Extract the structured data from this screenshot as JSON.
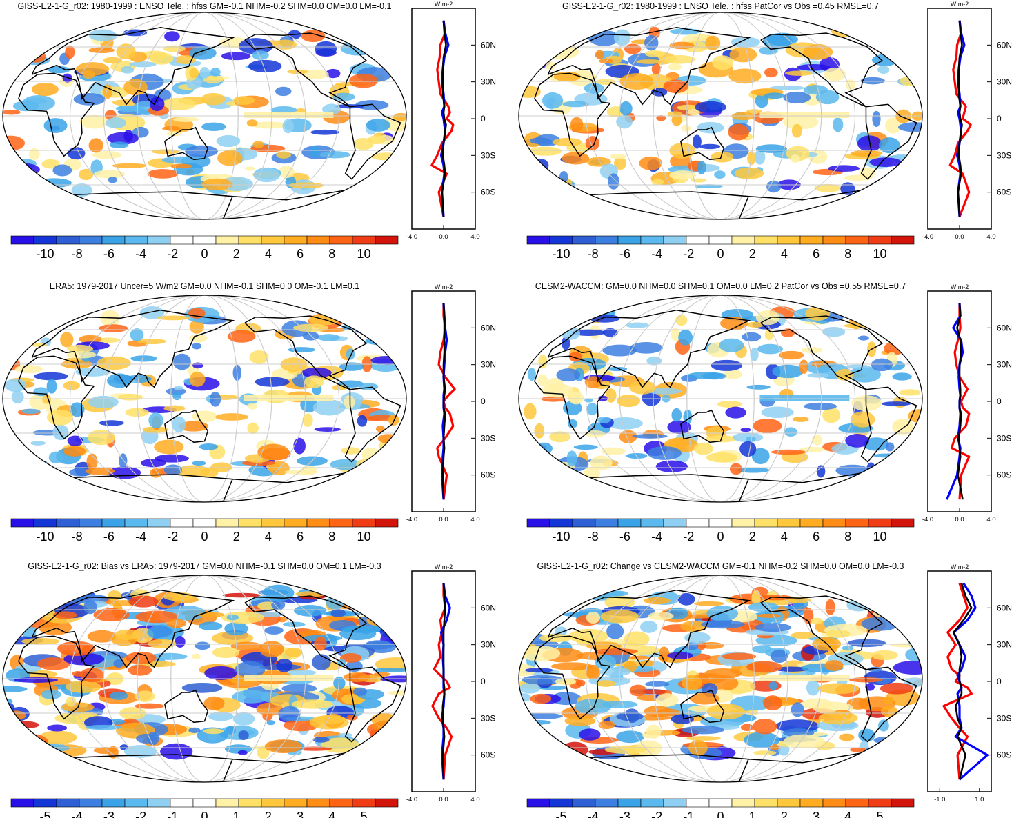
{
  "figure": {
    "panels": [
      {
        "title": "GISS-E2-1-G_r02: 1980-1999 : ENSO Tele. : hfss GM=-0.1 NHM=-0.2 SHM=0.0 OM=0.0 LM=-0.1",
        "colorbar_ticks": [
          "-10",
          "-8",
          "-6",
          "-4",
          "-2",
          "0",
          "2",
          "4",
          "6",
          "8",
          "10"
        ],
        "zonal_ticks": [
          "-4.0",
          "0.0",
          "4.0"
        ],
        "zonal_unit": "W m-2",
        "lat_ticks": [
          "60N",
          "30N",
          "0",
          "30S",
          "60S"
        ]
      },
      {
        "title": "GISS-E2-1-G_r02: 1980-1999 : ENSO Tele. : hfss PatCor vs Obs =0.45 RMSE=0.7",
        "colorbar_ticks": [
          "-10",
          "-8",
          "-6",
          "-4",
          "-2",
          "0",
          "2",
          "4",
          "6",
          "8",
          "10"
        ],
        "zonal_ticks": [
          "-4.0",
          "0.0",
          "4.0"
        ],
        "zonal_unit": "W m-2",
        "lat_ticks": [
          "60N",
          "30N",
          "0",
          "30S",
          "60S"
        ]
      },
      {
        "title": "ERA5: 1979-2017 Uncer=5 W/m2 GM=0.0 NHM=-0.1 SHM=0.0 OM=-0.1 LM=0.1",
        "colorbar_ticks": [
          "-10",
          "-8",
          "-6",
          "-4",
          "-2",
          "0",
          "2",
          "4",
          "6",
          "8",
          "10"
        ],
        "zonal_ticks": [
          "-4.0",
          "0.0",
          "4.0"
        ],
        "zonal_unit": "W m-2",
        "lat_ticks": [
          "60N",
          "30N",
          "0",
          "30S",
          "60S"
        ]
      },
      {
        "title": "CESM2-WACCM: GM=0.0 NHM=0.0 SHM=0.1 OM=0.0 LM=0.2 PatCor vs Obs =0.55 RMSE=0.7",
        "colorbar_ticks": [
          "-10",
          "-8",
          "-6",
          "-4",
          "-2",
          "0",
          "2",
          "4",
          "6",
          "8",
          "10"
        ],
        "zonal_ticks": [
          "-4.0",
          "0.0",
          "4.0"
        ],
        "zonal_unit": "W m-2",
        "lat_ticks": [
          "60N",
          "30N",
          "0",
          "30S",
          "60S"
        ]
      },
      {
        "title": "GISS-E2-1-G_r02: Bias vs ERA5: 1979-2017 GM=0.0 NHM=-0.1 SHM=0.0 OM=0.1 LM=-0.3",
        "colorbar_ticks": [
          "-5",
          "-4",
          "-3",
          "-2",
          "-1",
          "0",
          "1",
          "2",
          "3",
          "4",
          "5"
        ],
        "zonal_ticks": [
          "-4.0",
          "0.0",
          "4.0"
        ],
        "zonal_unit": "W m-2",
        "lat_ticks": [
          "60N",
          "30N",
          "0",
          "30S",
          "60S"
        ]
      },
      {
        "title": "GISS-E2-1-G_r02: Change vs CESM2-WACCM GM=-0.1 NHM=-0.2 SHM=0.0 OM=0.0 LM=-0.3",
        "colorbar_ticks": [
          "-5",
          "-4",
          "-3",
          "-2",
          "-1",
          "0",
          "1",
          "2",
          "3",
          "4",
          "5"
        ],
        "zonal_ticks": [
          "-1.0",
          "1.0"
        ],
        "zonal_unit": "W m-2",
        "lat_ticks": [
          "60N",
          "30N",
          "0",
          "30S",
          "60S"
        ]
      }
    ],
    "colors": {
      "palette": [
        "#2a10e8",
        "#1436d6",
        "#2f5fd4",
        "#3d7fe0",
        "#3aa3e8",
        "#5ab9ee",
        "#8fd0f2",
        "#ffffff",
        "#ffffff",
        "#fff1a6",
        "#ffe066",
        "#ffc83c",
        "#ffac20",
        "#ff8c14",
        "#ff6414",
        "#f03c14",
        "#d2140a"
      ],
      "red_line": "#ff0000",
      "blue_line": "#0000ff",
      "black_line": "#000000",
      "grid": "#cccccc",
      "coast": "#000000"
    }
  },
  "chart_data": [
    {
      "type": "heatmap",
      "title": "GISS-E2-1-G_r02: 1980-1999 : ENSO Tele. : hfss GM=-0.1 NHM=-0.2 SHM=0.0 OM=0.0 LM=-0.1",
      "colorbar_range": [
        -10,
        10
      ],
      "zonal_mean": {
        "xlim": [
          -4,
          4
        ],
        "y_lat": [
          -80,
          -60,
          -45,
          -38,
          -30,
          -20,
          -10,
          -5,
          0,
          5,
          10,
          20,
          30,
          40,
          50,
          60,
          70,
          80
        ],
        "series": [
          {
            "color": "red",
            "values": [
              0,
              -0.6,
              0.4,
              -1.5,
              -0.8,
              -0.2,
              1.0,
              1.2,
              0.4,
              0.8,
              0.6,
              -0.4,
              -0.6,
              -0.8,
              -0.5,
              -0.4,
              0.2,
              0
            ]
          },
          {
            "color": "blue",
            "values": [
              0,
              -0.2,
              0.1,
              0.0,
              -0.3,
              0.0,
              0.2,
              0.1,
              0.0,
              -0.2,
              0.1,
              0.0,
              -0.2,
              -0.1,
              0.1,
              0.6,
              0.2,
              0
            ]
          },
          {
            "color": "black",
            "values": [
              0,
              -0.2,
              0.2,
              0.1,
              -0.1,
              0.0,
              0.2,
              0.3,
              0.1,
              0.0,
              0.1,
              -0.1,
              -0.1,
              -0.1,
              0.0,
              0.3,
              0.1,
              0
            ]
          }
        ]
      }
    },
    {
      "type": "heatmap",
      "title": "GISS-E2-1-G_r02: 1980-1999 : ENSO Tele. : hfss PatCor vs Obs =0.45 RMSE=0.7",
      "colorbar_range": [
        -10,
        10
      ],
      "zonal_mean": {
        "xlim": [
          -4,
          4
        ],
        "y_lat": [
          -80,
          -60,
          -45,
          -38,
          -30,
          -20,
          -10,
          -5,
          0,
          5,
          10,
          20,
          30,
          40,
          50,
          60,
          70,
          80
        ],
        "series": [
          {
            "color": "red",
            "values": [
              0,
              1.2,
              0.4,
              -1.2,
              -0.6,
              -0.2,
              1.0,
              1.4,
              0.4,
              0.6,
              0.8,
              -0.4,
              -0.6,
              -0.8,
              -0.4,
              -0.3,
              0.2,
              0
            ]
          },
          {
            "color": "blue",
            "values": [
              0,
              -0.2,
              0.1,
              0.0,
              -0.3,
              0.0,
              0.2,
              0.1,
              0.0,
              -0.2,
              0.1,
              0.0,
              -0.2,
              -0.1,
              0.1,
              0.6,
              0.2,
              0
            ]
          },
          {
            "color": "black",
            "values": [
              0,
              -0.2,
              0.2,
              0.1,
              -0.1,
              0.0,
              0.2,
              0.3,
              0.1,
              0.0,
              0.1,
              -0.1,
              -0.1,
              -0.1,
              0.0,
              0.3,
              0.1,
              0
            ]
          }
        ]
      }
    },
    {
      "type": "heatmap",
      "title": "ERA5: 1979-2017 Uncer=5 W/m2 GM=0.0 NHM=-0.1 SHM=0.0 OM=-0.1 LM=0.1",
      "colorbar_range": [
        -10,
        10
      ],
      "zonal_mean": {
        "xlim": [
          -4,
          4
        ],
        "y_lat": [
          -80,
          -60,
          -45,
          -38,
          -30,
          -20,
          -10,
          -5,
          0,
          5,
          10,
          20,
          30,
          40,
          50,
          60,
          70,
          80
        ],
        "series": [
          {
            "color": "red",
            "values": [
              0,
              0.4,
              -0.6,
              -0.8,
              0.2,
              1.2,
              0.8,
              0.2,
              0.0,
              0.6,
              1.4,
              0.2,
              -0.6,
              -0.4,
              0.0,
              0.2,
              0.0,
              0
            ]
          },
          {
            "color": "blue",
            "values": [
              0,
              -0.2,
              -0.1,
              0.0,
              0.0,
              -0.1,
              0.1,
              0.0,
              0.0,
              0.0,
              0.1,
              0.0,
              0.1,
              0.2,
              0.4,
              0.2,
              0.1,
              0
            ]
          },
          {
            "color": "black",
            "values": [
              0,
              -0.1,
              0.0,
              0.1,
              0.0,
              0.1,
              0.2,
              0.0,
              0.0,
              0.1,
              0.2,
              0.0,
              0.0,
              0.1,
              0.1,
              0.1,
              0.1,
              0
            ]
          }
        ]
      }
    },
    {
      "type": "heatmap",
      "title": "CESM2-WACCM: GM=0.0 NHM=0.0 SHM=0.1 OM=0.0 LM=0.2 PatCor vs Obs =0.55 RMSE=0.7",
      "colorbar_range": [
        -10,
        10
      ],
      "zonal_mean": {
        "xlim": [
          -4,
          4
        ],
        "y_lat": [
          -80,
          -60,
          -45,
          -38,
          -30,
          -20,
          -10,
          -5,
          0,
          5,
          10,
          20,
          30,
          40,
          50,
          60,
          70,
          80
        ],
        "series": [
          {
            "color": "red",
            "values": [
              0,
              0.2,
              1.2,
              -1.0,
              -0.6,
              0.8,
              1.2,
              0.4,
              0.2,
              0.6,
              1.0,
              0.0,
              -0.4,
              -0.6,
              -0.2,
              0.1,
              0.0,
              0
            ]
          },
          {
            "color": "blue",
            "values": [
              -1.6,
              -0.3,
              0.0,
              0.1,
              -0.2,
              0.0,
              0.1,
              0.0,
              0.0,
              0.1,
              0.0,
              -0.1,
              0.0,
              0.4,
              0.2,
              -0.8,
              0.1,
              0
            ]
          },
          {
            "color": "black",
            "values": [
              0.4,
              -0.2,
              0.1,
              0.0,
              -0.1,
              0.1,
              0.2,
              0.0,
              0.0,
              0.1,
              0.1,
              0.0,
              0.0,
              0.2,
              0.1,
              -0.3,
              0.1,
              0
            ]
          }
        ]
      }
    },
    {
      "type": "heatmap",
      "title": "GISS-E2-1-G_r02: Bias vs ERA5: 1979-2017 GM=0.0 NHM=-0.1 SHM=0.0 OM=0.1 LM=-0.3",
      "colorbar_range": [
        -5,
        5
      ],
      "zonal_mean": {
        "xlim": [
          -4,
          4
        ],
        "y_lat": [
          -80,
          -60,
          -45,
          -38,
          -30,
          -20,
          -10,
          -5,
          0,
          5,
          10,
          20,
          30,
          40,
          50,
          60,
          70,
          80
        ],
        "series": [
          {
            "color": "red",
            "values": [
              0,
              0.2,
              1.0,
              0.4,
              -0.6,
              -1.4,
              -0.6,
              0.8,
              0.4,
              -0.4,
              -1.2,
              -0.4,
              -0.6,
              -0.2,
              -0.4,
              0.2,
              0.0,
              0
            ]
          },
          {
            "color": "blue",
            "values": [
              0,
              -0.2,
              0.0,
              0.0,
              -0.2,
              0.0,
              0.1,
              0.0,
              0.0,
              0.0,
              0.0,
              -0.1,
              0.0,
              -0.3,
              0.4,
              0.8,
              0.2,
              0
            ]
          },
          {
            "color": "black",
            "values": [
              0,
              -0.1,
              0.1,
              0.0,
              -0.1,
              -0.1,
              0.1,
              0.1,
              0.0,
              0.0,
              0.0,
              0.0,
              0.0,
              0.0,
              0.1,
              0.2,
              0.1,
              0
            ]
          }
        ]
      }
    },
    {
      "type": "heatmap",
      "title": "GISS-E2-1-G_r02: Change vs CESM2-WACCM GM=-0.1 NHM=-0.2 SHM=0.0 OM=0.0 LM=-0.3",
      "colorbar_range": [
        -5,
        5
      ],
      "zonal_mean": {
        "xlim": [
          -1.6,
          1.6
        ],
        "y_lat": [
          -80,
          -60,
          -45,
          -38,
          -30,
          -20,
          -10,
          -5,
          0,
          5,
          10,
          20,
          30,
          40,
          50,
          60,
          70,
          80
        ],
        "series": [
          {
            "color": "red",
            "values": [
              0.0,
              -0.1,
              0.4,
              0.0,
              -0.4,
              -0.8,
              0.6,
              0.4,
              -0.2,
              0.0,
              -0.4,
              -0.6,
              -0.2,
              -0.6,
              0.0,
              0.4,
              0.2,
              0.0
            ]
          },
          {
            "color": "blue",
            "values": [
              0.0,
              1.4,
              -0.2,
              0.1,
              0.0,
              0.0,
              -0.1,
              0.1,
              0.0,
              -0.1,
              0.1,
              0.3,
              0.0,
              -0.3,
              0.4,
              0.8,
              0.6,
              0.2
            ]
          },
          {
            "color": "black",
            "values": [
              0.0,
              0.3,
              -0.1,
              0.1,
              -0.1,
              -0.2,
              0.1,
              0.1,
              0.0,
              0.0,
              0.0,
              0.1,
              0.0,
              -0.3,
              0.2,
              0.6,
              0.3,
              0.1
            ]
          }
        ]
      }
    }
  ]
}
